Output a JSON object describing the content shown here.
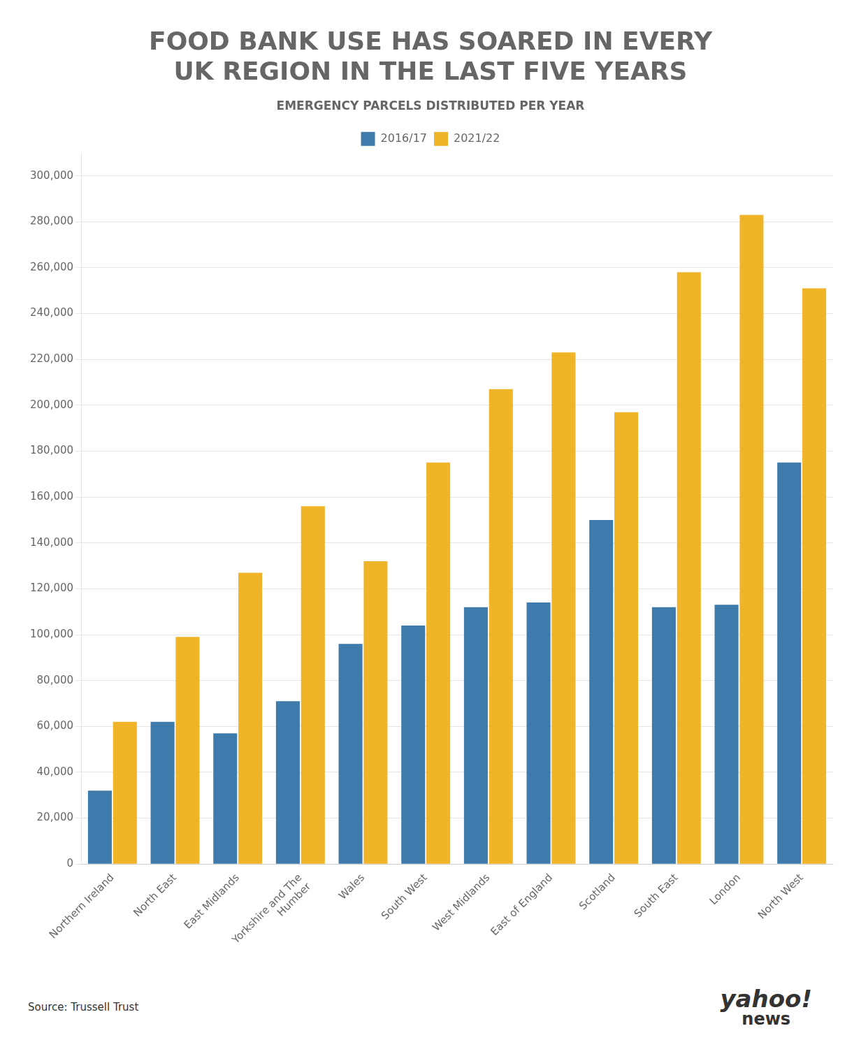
{
  "chart_data": {
    "type": "bar",
    "title": "FOOD BANK USE HAS SOARED IN EVERY\nUK REGION IN THE LAST FIVE YEARS",
    "subtitle": "EMERGENCY PARCELS DISTRIBUTED PER YEAR",
    "categories": [
      "Northern Ireland",
      "North East",
      "East Midlands",
      "Yorkshire and The\nHumber",
      "Wales",
      "South West",
      "West Midlands",
      "East of England",
      "Scotland",
      "South East",
      "London",
      "North West"
    ],
    "series": [
      {
        "name": "2016/17",
        "color": "#3e7bac",
        "values": [
          32000,
          62000,
          57000,
          71000,
          96000,
          104000,
          112000,
          114000,
          150000,
          112000,
          113000,
          175000
        ]
      },
      {
        "name": "2021/22",
        "color": "#f0b429",
        "values": [
          62000,
          99000,
          127000,
          156000,
          132000,
          175000,
          207000,
          223000,
          197000,
          258000,
          283000,
          251000
        ]
      }
    ],
    "ylim": [
      0,
      310000
    ],
    "yticks": [
      0,
      {
        "value": 20000,
        "label": "20,000"
      },
      {
        "value": 40000,
        "label": "40,000"
      },
      {
        "value": 60000,
        "label": "60,000"
      },
      {
        "value": 80000,
        "label": "80,000"
      },
      {
        "value": 100000,
        "label": "100,000"
      },
      {
        "value": 120000,
        "label": "120,000"
      },
      {
        "value": 140000,
        "label": "140,000"
      },
      {
        "value": 160000,
        "label": "160,000"
      },
      {
        "value": 180000,
        "label": "180,000"
      },
      {
        "value": 200000,
        "label": "200,000"
      },
      {
        "value": 220000,
        "label": "220,000"
      },
      {
        "value": 240000,
        "label": "240,000"
      },
      {
        "value": 260000,
        "label": "260,000"
      },
      {
        "value": 280000,
        "label": "280,000"
      },
      {
        "value": 300000,
        "label": "300,000"
      }
    ],
    "grid": true,
    "legend": "top",
    "annotations": [
      "Source: Trussell Trust",
      "yahoo!",
      "news"
    ]
  }
}
